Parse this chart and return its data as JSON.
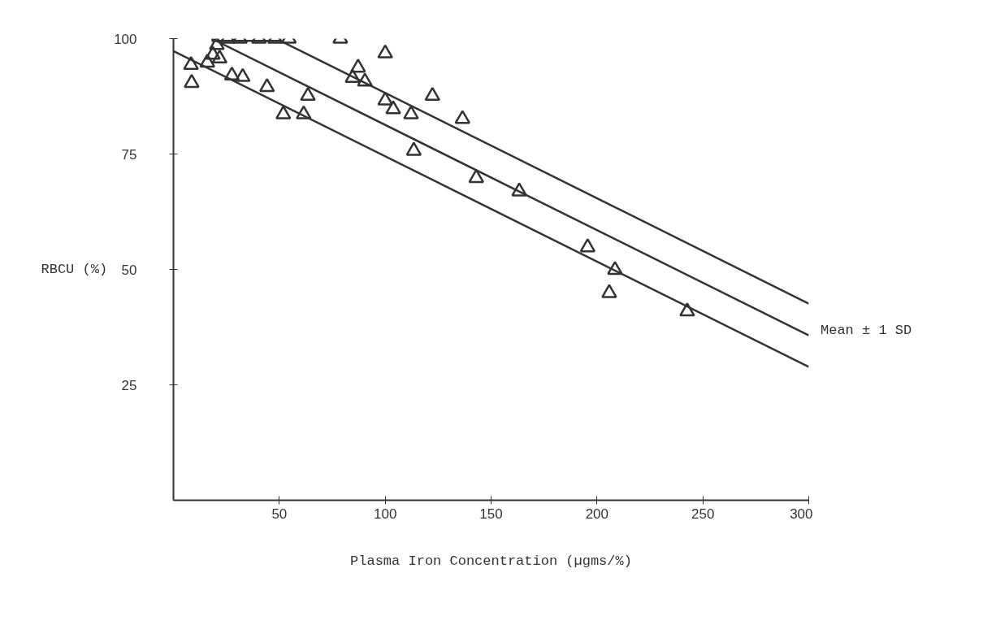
{
  "chart_data": {
    "type": "scatter",
    "xlabel": "Plasma Iron Concentration (µgms/%)",
    "ylabel": "RBCU (%)",
    "annotations": [
      "Mean ± 1 SD"
    ],
    "xlim": [
      0,
      300
    ],
    "ylim": [
      0,
      100
    ],
    "xticks": [
      50,
      100,
      150,
      200,
      250,
      300
    ],
    "yticks": [
      25,
      50,
      75,
      100
    ],
    "grid": false,
    "series": [
      {
        "marker": "triangle",
        "color": "#333333",
        "x": [
          8.3,
          8.6,
          16,
          18.6,
          20.5,
          21.8,
          25.6,
          31.4,
          40.4,
          48,
          54.5,
          27.6,
          32.7,
          44.2,
          51.9,
          61.5,
          63.5,
          78.8,
          100,
          87.2,
          84.6,
          90.4,
          100,
          103.8,
          112.2,
          122.3,
          136.5,
          113.5,
          143,
          163.3,
          195.6,
          208.5,
          205.8,
          242.6
        ],
        "values": [
          94.3,
          90.4,
          94.8,
          96.5,
          98.6,
          95.7,
          100,
          100,
          100,
          100,
          100,
          92,
          91.7,
          89.5,
          83.6,
          83.6,
          87.6,
          100,
          96.8,
          93.7,
          91.5,
          90.7,
          86.6,
          84.7,
          83.6,
          87.6,
          82.6,
          75.7,
          69.8,
          66.9,
          54.8,
          49.9,
          44.9,
          40.9
        ]
      },
      {
        "type": "line",
        "marker": "none",
        "color": "#333333",
        "x": [
          0,
          300
        ],
        "values": [
          97.3,
          28.9
        ]
      },
      {
        "type": "line",
        "marker": "none",
        "color": "#333333",
        "x": [
          18,
          300
        ],
        "values": [
          100,
          35.7
        ]
      },
      {
        "type": "line",
        "marker": "none",
        "color": "#333333",
        "x": [
          18,
          50.6,
          300
        ],
        "values": [
          99.5,
          99.5,
          42.6
        ]
      }
    ]
  }
}
